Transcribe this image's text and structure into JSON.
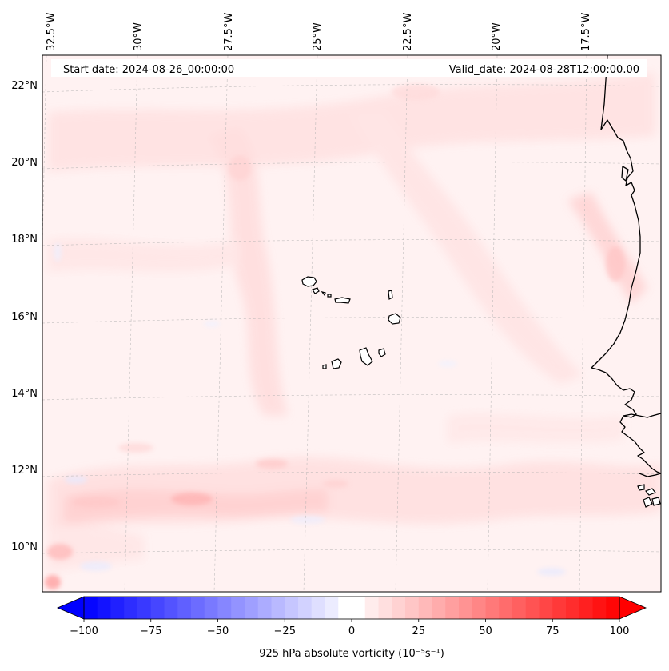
{
  "header": {
    "start_date": "Start date: 2024-08-26_00:00:00",
    "valid_date": "Valid_date: 2024-08-28T12:00:00.00"
  },
  "longitude_labels": [
    "32.5°W",
    "30°W",
    "27.5°W",
    "25°W",
    "22.5°W",
    "20°W",
    "17.5°W"
  ],
  "latitude_labels": [
    "22°N",
    "20°N",
    "18°N",
    "16°N",
    "14°N",
    "12°N",
    "10°N"
  ],
  "colorbar": {
    "label": "925 hPa absolute vorticity (10⁻⁵s⁻¹)",
    "min": -100,
    "max": 100,
    "levels": 40,
    "ticks": [
      "−100",
      "−75",
      "−50",
      "−25",
      "0",
      "25",
      "50",
      "75",
      "100"
    ],
    "colors": {
      "negative": "#0000ff",
      "zero": "#ffffff",
      "positive": "#ff0000"
    }
  },
  "field": {
    "variable": "925 hPa absolute vorticity",
    "dominant_sign": "positive (weak, mostly light pink)",
    "max_feature": "banded maxima near 11°N 27°W and 9.5°N 32°W"
  }
}
